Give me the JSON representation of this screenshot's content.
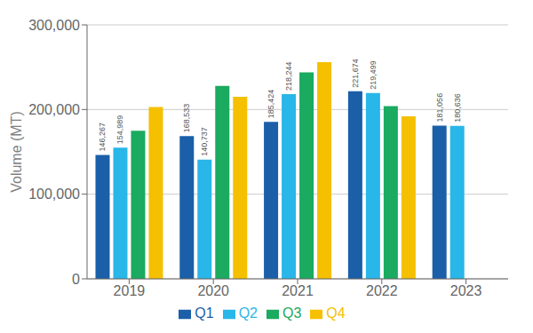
{
  "chart_data": {
    "type": "bar",
    "categories": [
      "2019",
      "2020",
      "2021",
      "2022",
      "2023"
    ],
    "series": [
      {
        "name": "Q1",
        "color": "#1a5fa8",
        "values": [
          146267,
          168533,
          185424,
          221674,
          181056
        ],
        "data_labels": true,
        "value_labels": [
          "146,267",
          "168,533",
          "185,424",
          "221,674",
          "181,056"
        ]
      },
      {
        "name": "Q2",
        "color": "#29b6e8",
        "values": [
          154989,
          140737,
          218244,
          219499,
          180636
        ],
        "data_labels": true,
        "value_labels": [
          "154,989",
          "140,737",
          "218,244",
          "219,499",
          "180,636"
        ]
      },
      {
        "name": "Q3",
        "color": "#1aaa60",
        "values": [
          175000,
          228000,
          244000,
          204000,
          0
        ]
      },
      {
        "name": "Q4",
        "color": "#f5c000",
        "values": [
          203000,
          215000,
          256000,
          192000,
          0
        ]
      }
    ],
    "ylabel": "Volume (MT)",
    "ylim": [
      0,
      300000
    ],
    "yticks": [
      0,
      {
        "value": 100000,
        "label": "100,000"
      },
      {
        "value": 200000,
        "label": "200,000"
      },
      {
        "value": 300000,
        "label": "300,000"
      }
    ],
    "grid": true,
    "legend": "bottom"
  }
}
